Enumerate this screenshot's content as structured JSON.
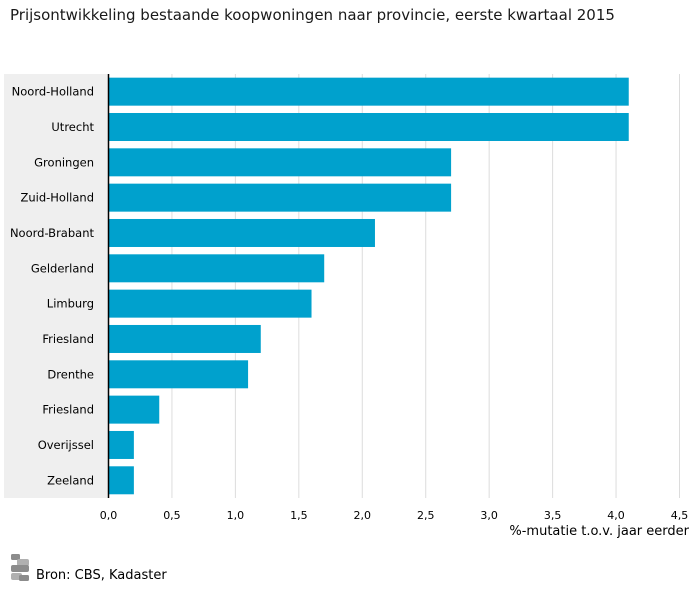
{
  "chart_data": {
    "type": "bar",
    "orientation": "horizontal",
    "title": "Prijsontwikkeling bestaande koopwoningen naar provincie, eerste kwartaal 2015",
    "xlabel": "%-mutatie t.o.v. jaar eerder",
    "categories": [
      "Noord-Holland",
      "Utrecht",
      "Groningen",
      "Zuid-Holland",
      "Noord-Brabant",
      "Gelderland",
      "Limburg",
      "Friesland",
      "Drenthe",
      "Friesland",
      "Overijssel",
      "Zeeland"
    ],
    "values": [
      4.1,
      4.1,
      2.7,
      2.7,
      2.1,
      1.7,
      1.6,
      1.2,
      1.1,
      0.4,
      0.2,
      0.2
    ],
    "xlim": [
      0,
      4.5
    ],
    "xticks": [
      "0,0",
      "0,5",
      "1,0",
      "1,5",
      "2,0",
      "2,5",
      "3,0",
      "3,5",
      "4,0",
      "4,5"
    ],
    "grid": true,
    "bar_color": "#00a1cd"
  },
  "footer": {
    "source": "Bron: CBS, Kadaster",
    "logo_icon": "cbs-logo-icon"
  }
}
